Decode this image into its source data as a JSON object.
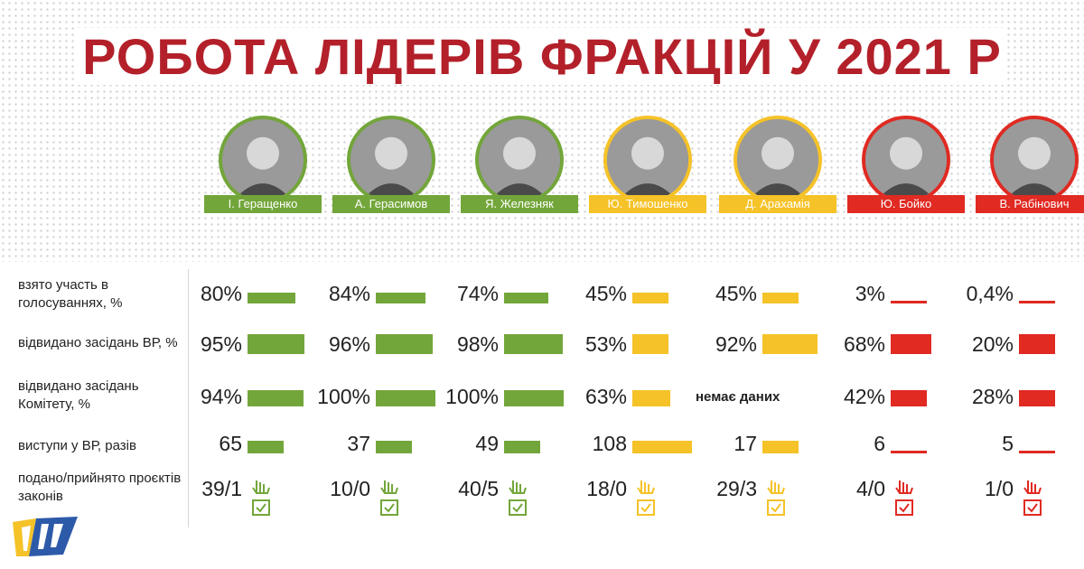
{
  "title": "РОБОТА ЛІДЕРІВ ФРАКЦІЙ У 2021 Р",
  "colors": {
    "green": "#73a63a",
    "yellow": "#f5c228",
    "red": "#e02a22",
    "title": "#b3202a"
  },
  "row_labels": [
    "взято участь в голосуваннях, %",
    "відвидано засідань ВР, %",
    "відвидано засідань Комітету, %",
    "виступи у ВР, разів",
    "подано/прийнято проєктів законів"
  ],
  "no_data_text": "немає даних",
  "chart_data": {
    "type": "table",
    "title": "РОБОТА ЛІДЕРІВ ФРАКЦІЙ У 2021 Р",
    "leaders": [
      {
        "name": "І. Геращенко",
        "color": "green",
        "votes": "80%",
        "vr": "95%",
        "committee": "94%",
        "speeches": "65",
        "bills": "39/1"
      },
      {
        "name": "А. Герасимов",
        "color": "green",
        "votes": "84%",
        "vr": "96%",
        "committee": "100%",
        "speeches": "37",
        "bills": "10/0"
      },
      {
        "name": "Я. Железняк",
        "color": "green",
        "votes": "74%",
        "vr": "98%",
        "committee": "100%",
        "speeches": "49",
        "bills": "40/5"
      },
      {
        "name": "Ю. Тимошенко",
        "color": "yellow",
        "votes": "45%",
        "vr": "53%",
        "committee": "63%",
        "speeches": "108",
        "bills": "18/0"
      },
      {
        "name": "Д. Арахамія",
        "color": "yellow",
        "votes": "45%",
        "vr": "92%",
        "committee": null,
        "speeches": "17",
        "bills": "29/3"
      },
      {
        "name": "Ю. Бойко",
        "color": "red",
        "votes": "3%",
        "vr": "68%",
        "committee": "42%",
        "speeches": "6",
        "bills": "4/0"
      },
      {
        "name": "В. Рабінович",
        "color": "red",
        "votes": "0,4%",
        "vr": "20%",
        "committee": "28%",
        "speeches": "5",
        "bills": "1/0"
      }
    ],
    "values": {
      "votes": [
        80,
        84,
        74,
        45,
        45,
        3,
        0.4
      ],
      "vr": [
        95,
        96,
        98,
        53,
        92,
        68,
        20
      ],
      "committee": [
        94,
        100,
        100,
        63,
        null,
        42,
        28
      ],
      "speeches": [
        65,
        37,
        49,
        108,
        17,
        6,
        5
      ]
    }
  }
}
